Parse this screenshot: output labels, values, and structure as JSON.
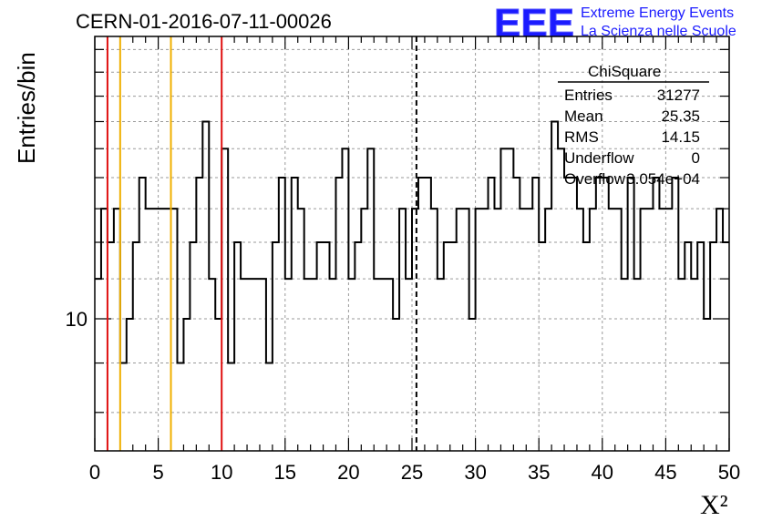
{
  "title": "CERN-01-2016-07-11-00026",
  "logo": {
    "text": "EEE",
    "line1": "Extreme Energy Events",
    "line2": "La Scienza nelle Scuole",
    "color": "#1b1bff"
  },
  "stats": {
    "name": "ChiSquare",
    "rows": [
      {
        "label": "Entries",
        "value": "31277"
      },
      {
        "label": "Mean",
        "value": "25.35"
      },
      {
        "label": "RMS",
        "value": "14.15"
      },
      {
        "label": "Underflow",
        "value": "0"
      },
      {
        "label": "Overflow",
        "value": "3.054e+04"
      }
    ]
  },
  "chart_data": {
    "type": "histogram",
    "title": "CERN-01-2016-07-11-00026",
    "xlabel": "X²",
    "ylabel": "Entries/bin",
    "xlim": [
      0,
      50
    ],
    "ylim": [
      7.3,
      19.6
    ],
    "log_y": true,
    "grid": true,
    "bin_width": 0.5,
    "x_ticks": [
      "0",
      "5",
      "10",
      "15",
      "20",
      "25",
      "30",
      "35",
      "40",
      "45",
      "50"
    ],
    "y_ticks": [
      "10"
    ],
    "y_tick_values": [
      10
    ],
    "values": [
      11,
      13,
      12,
      13,
      9,
      10,
      12,
      14,
      13,
      13,
      13,
      13,
      13,
      9,
      10,
      12,
      14,
      16,
      11,
      10,
      15,
      9,
      12,
      11,
      11,
      11,
      11,
      9,
      12,
      14,
      11,
      14,
      13,
      11,
      11,
      12,
      12,
      11,
      14,
      15,
      11,
      12,
      13,
      15,
      11,
      11,
      11,
      10,
      13,
      11,
      13,
      14,
      14,
      13,
      11,
      12,
      12,
      13,
      13,
      10,
      13,
      13,
      14,
      13,
      15,
      15,
      14,
      13,
      13,
      14,
      12,
      13,
      16,
      15,
      14,
      14,
      13,
      12,
      13,
      14,
      14,
      13,
      13,
      11,
      14,
      11,
      13,
      13,
      14,
      13,
      13,
      14,
      11,
      12,
      11,
      12,
      10,
      12,
      13,
      12
    ],
    "vertical_lines": [
      {
        "x": 1,
        "color": "#e01010",
        "style": "solid"
      },
      {
        "x": 2,
        "color": "#f0b000",
        "style": "solid"
      },
      {
        "x": 6,
        "color": "#f0b000",
        "style": "solid"
      },
      {
        "x": 10,
        "color": "#e01010",
        "style": "solid"
      },
      {
        "x": 25.35,
        "color": "#000000",
        "style": "dashed"
      }
    ]
  }
}
